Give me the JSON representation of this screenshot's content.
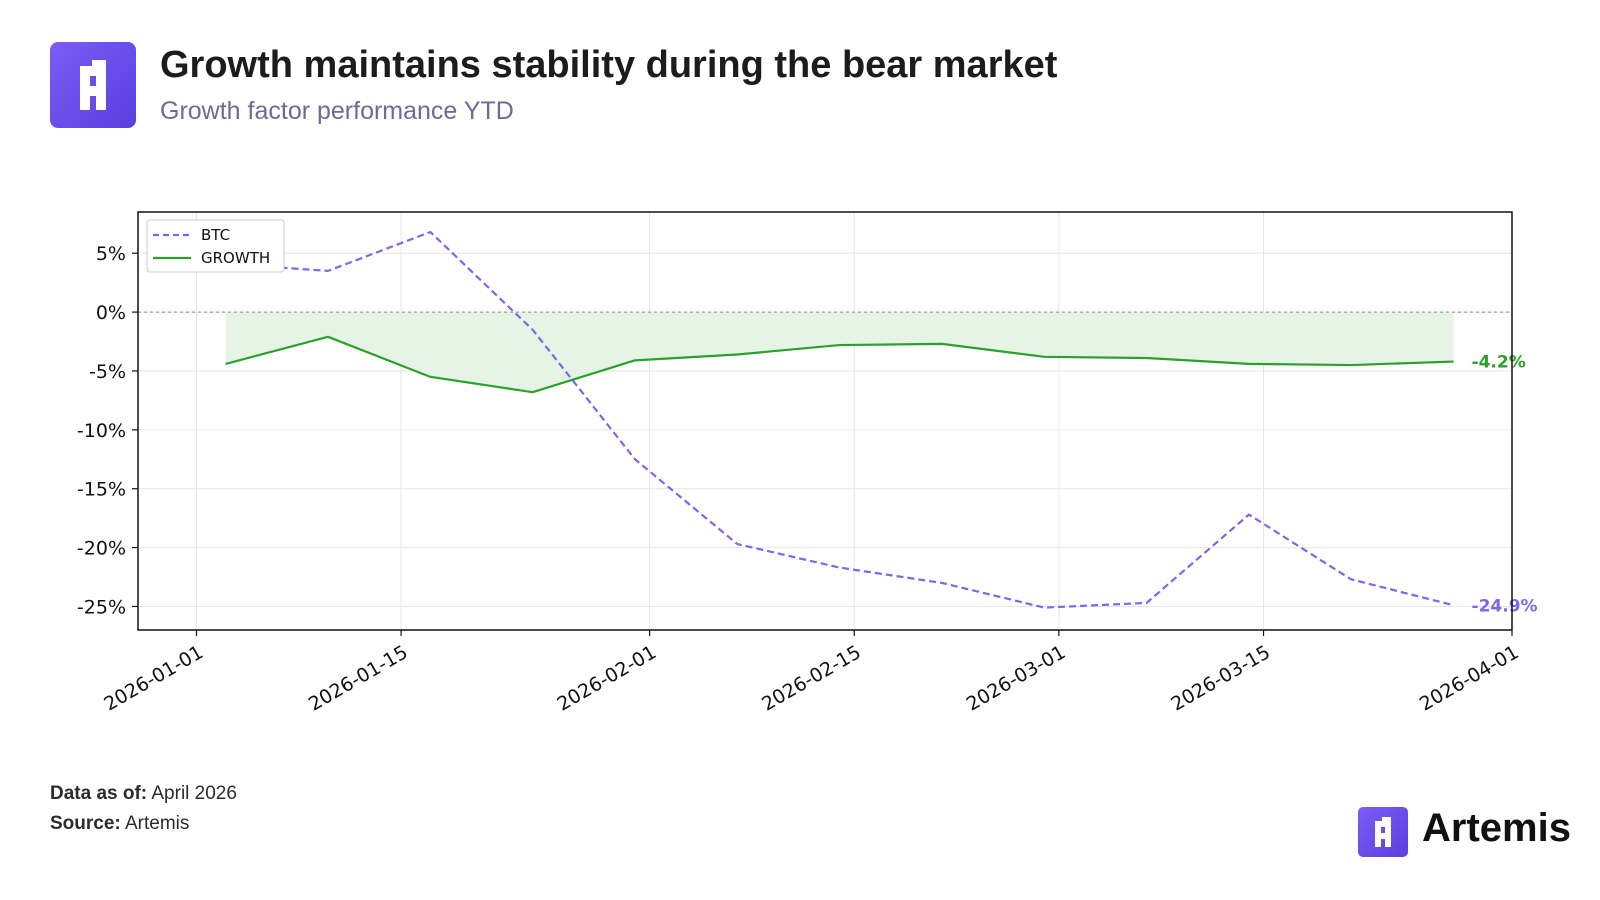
{
  "header": {
    "title": "Growth maintains stability during the bear market",
    "subtitle": "Growth factor performance YTD",
    "logo_icon": "artemis-logo-icon"
  },
  "footer": {
    "data_as_of_label": "Data as of:",
    "data_as_of_value": "April 2026",
    "source_label": "Source:",
    "source_value": "Artemis",
    "brand_name": "Artemis"
  },
  "colors": {
    "btc": "#7b68ee",
    "growth": "#2ca02c",
    "growth_fill": "#e6f4e6",
    "brand": "#6b4ff0"
  },
  "chart_data": {
    "type": "line",
    "x_axis_type": "date",
    "xlim": [
      "2025-12-28",
      "2026-04-01"
    ],
    "ylim": [
      -27,
      8.5
    ],
    "x_ticks": [
      "2026-01-01",
      "2026-01-15",
      "2026-02-01",
      "2026-02-15",
      "2026-03-01",
      "2026-03-15",
      "2026-04-01"
    ],
    "y_ticks": [
      5,
      0,
      -5,
      -10,
      -15,
      -20,
      -25
    ],
    "y_tick_labels": [
      "5%",
      "0%",
      "-5%",
      "-10%",
      "-15%",
      "-20%",
      "-25%"
    ],
    "grid": true,
    "legend_position": "top-left",
    "zero_line": true,
    "series": [
      {
        "name": "BTC",
        "style": "dashed",
        "x": [
          "2026-01-03",
          "2026-01-10",
          "2026-01-17",
          "2026-01-24",
          "2026-01-31",
          "2026-02-07",
          "2026-02-14",
          "2026-02-21",
          "2026-02-28",
          "2026-03-07",
          "2026-03-14",
          "2026-03-21",
          "2026-03-28"
        ],
        "values": [
          4.1,
          3.5,
          6.8,
          -1.5,
          -12.5,
          -19.7,
          -21.7,
          -23.0,
          -25.1,
          -24.7,
          -17.2,
          -22.7,
          -24.9
        ],
        "end_label": "-24.9%"
      },
      {
        "name": "GROWTH",
        "style": "solid",
        "fill_to_zero": true,
        "x": [
          "2026-01-03",
          "2026-01-10",
          "2026-01-17",
          "2026-01-24",
          "2026-01-31",
          "2026-02-07",
          "2026-02-14",
          "2026-02-21",
          "2026-02-28",
          "2026-03-07",
          "2026-03-14",
          "2026-03-21",
          "2026-03-28"
        ],
        "values": [
          -4.4,
          -2.1,
          -5.5,
          -6.8,
          -4.1,
          -3.6,
          -2.8,
          -2.7,
          -3.8,
          -3.9,
          -4.4,
          -4.5,
          -4.2
        ],
        "end_label": "-4.2%"
      }
    ]
  }
}
